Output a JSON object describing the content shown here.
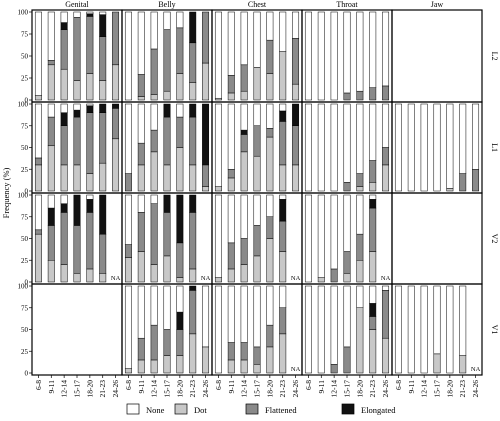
{
  "chart_data": {
    "type": "bar",
    "stacked": true,
    "ylabel": "Frequency (%)",
    "ylim": [
      0,
      100
    ],
    "yticks": [
      0,
      25,
      50,
      75,
      100
    ],
    "categories": [
      "6-8",
      "9-11",
      "12-14",
      "15-17",
      "18-20",
      "21-23",
      "24-26"
    ],
    "columns": [
      "Genital",
      "Belly",
      "Chest",
      "Throat",
      "Jaw"
    ],
    "rows": [
      "L2",
      "L1",
      "V2",
      "V1"
    ],
    "na_label": "NA",
    "stack_order": [
      "Dot",
      "Flattened",
      "Elongated",
      "None"
    ],
    "legend": [
      {
        "name": "None",
        "color": "#ffffff"
      },
      {
        "name": "Dot",
        "color": "#c8c8c8"
      },
      {
        "name": "Flattened",
        "color": "#8a8a8a"
      },
      {
        "name": "Elongated",
        "color": "#111111"
      }
    ],
    "cells": {
      "L2": {
        "Genital": [
          [
            5,
            0,
            0
          ],
          [
            40,
            5,
            0
          ],
          [
            35,
            45,
            8
          ],
          [
            22,
            72,
            0
          ],
          [
            30,
            65,
            3
          ],
          [
            22,
            50,
            25
          ],
          [
            40,
            60,
            0
          ]
        ],
        "Belly": [
          [
            0,
            0,
            0
          ],
          [
            4,
            25,
            0
          ],
          [
            6,
            52,
            0
          ],
          [
            10,
            70,
            0
          ],
          [
            30,
            52,
            0
          ],
          [
            20,
            45,
            35
          ],
          [
            42,
            58,
            0
          ]
        ],
        "Chest": [
          [
            2,
            0,
            0
          ],
          [
            8,
            20,
            0
          ],
          [
            10,
            30,
            0
          ],
          [
            37,
            0,
            0
          ],
          [
            30,
            38,
            0
          ],
          [
            55,
            0,
            0
          ],
          [
            18,
            52,
            0
          ]
        ],
        "Throat": [
          [
            0,
            0,
            0
          ],
          [
            0,
            0,
            0
          ],
          [
            0,
            0,
            0
          ],
          [
            0,
            8,
            0
          ],
          [
            0,
            10,
            0
          ],
          [
            0,
            14,
            0
          ],
          [
            0,
            16,
            0
          ]
        ],
        "Jaw": "blank"
      },
      "L1": {
        "Genital": [
          [
            30,
            8,
            0
          ],
          [
            52,
            33,
            0
          ],
          [
            30,
            45,
            15
          ],
          [
            30,
            55,
            8
          ],
          [
            20,
            70,
            8
          ],
          [
            32,
            58,
            10
          ],
          [
            60,
            35,
            5
          ]
        ],
        "Belly": [
          [
            0,
            20,
            0
          ],
          [
            30,
            25,
            0
          ],
          [
            45,
            25,
            0
          ],
          [
            30,
            55,
            15
          ],
          [
            50,
            35,
            0
          ],
          [
            30,
            55,
            15
          ],
          [
            5,
            25,
            70
          ]
        ],
        "Chest": [
          [
            5,
            0,
            0
          ],
          [
            15,
            10,
            0
          ],
          [
            45,
            20,
            5
          ],
          [
            40,
            35,
            0
          ],
          [
            62,
            10,
            0
          ],
          [
            30,
            50,
            12
          ],
          [
            30,
            45,
            25
          ]
        ],
        "Throat": [
          [
            0,
            0,
            0
          ],
          [
            0,
            0,
            0
          ],
          [
            0,
            0,
            0
          ],
          [
            0,
            10,
            0
          ],
          [
            5,
            15,
            0
          ],
          [
            10,
            25,
            0
          ],
          [
            30,
            20,
            0
          ]
        ],
        "Jaw": [
          [
            0,
            0,
            0
          ],
          [
            0,
            0,
            0
          ],
          [
            0,
            0,
            0
          ],
          [
            0,
            0,
            0
          ],
          [
            3,
            0,
            0
          ],
          [
            0,
            20,
            0
          ],
          [
            0,
            25,
            0
          ]
        ]
      },
      "V2": {
        "Genital": [
          [
            55,
            5,
            0
          ],
          [
            25,
            40,
            20
          ],
          [
            20,
            60,
            10
          ],
          [
            10,
            55,
            35
          ],
          [
            15,
            65,
            15
          ],
          [
            10,
            45,
            45
          ],
          "NA"
        ],
        "Belly": [
          [
            28,
            15,
            0
          ],
          [
            35,
            45,
            0
          ],
          [
            20,
            70,
            0
          ],
          [
            30,
            50,
            20
          ],
          [
            5,
            40,
            55
          ],
          [
            15,
            65,
            20
          ],
          "NA"
        ],
        "Chest": [
          [
            5,
            0,
            0
          ],
          [
            15,
            30,
            0
          ],
          [
            20,
            30,
            0
          ],
          [
            30,
            35,
            0
          ],
          [
            50,
            25,
            0
          ],
          [
            35,
            35,
            25
          ],
          "NA"
        ],
        "Throat": [
          [
            0,
            0,
            0
          ],
          [
            5,
            0,
            0
          ],
          [
            0,
            15,
            0
          ],
          [
            10,
            25,
            0
          ],
          [
            25,
            30,
            0
          ],
          [
            35,
            50,
            10
          ],
          "NA"
        ],
        "Jaw": "blank"
      },
      "V1": {
        "Genital": "blank",
        "Belly": [
          [
            5,
            0,
            0
          ],
          [
            15,
            25,
            0
          ],
          [
            15,
            40,
            0
          ],
          [
            20,
            30,
            0
          ],
          [
            20,
            30,
            20
          ],
          [
            45,
            50,
            5
          ],
          [
            30,
            0,
            0
          ]
        ],
        "Chest": [
          [
            0,
            0,
            0
          ],
          [
            15,
            20,
            0
          ],
          [
            15,
            20,
            0
          ],
          [
            10,
            20,
            0
          ],
          [
            30,
            25,
            0
          ],
          [
            45,
            30,
            0
          ],
          "NA"
        ],
        "Throat": [
          [
            0,
            0,
            0
          ],
          [
            0,
            0,
            0
          ],
          [
            0,
            10,
            0
          ],
          [
            0,
            30,
            0
          ],
          [
            75,
            0,
            0
          ],
          [
            50,
            15,
            15
          ],
          [
            40,
            55,
            0
          ]
        ],
        "Jaw": [
          [
            0,
            0,
            0
          ],
          [
            0,
            0,
            0
          ],
          [
            0,
            0,
            0
          ],
          [
            22,
            0,
            0
          ],
          [
            0,
            0,
            0
          ],
          [
            20,
            0,
            0
          ],
          "NA"
        ]
      }
    }
  }
}
